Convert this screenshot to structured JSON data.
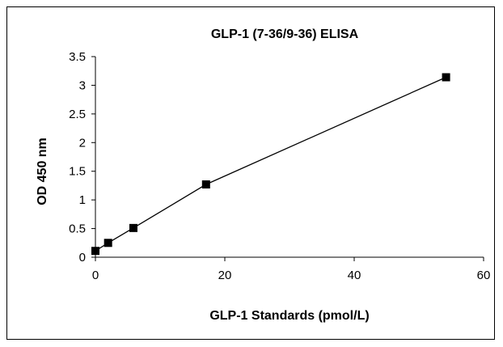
{
  "chart_data": {
    "type": "scatter",
    "title": "GLP-1 (7-36/9-36) ELISA",
    "xlabel": "GLP-1 Standards (pmol/L)",
    "ylabel": "OD 450 nm",
    "xlim": [
      0,
      60
    ],
    "ylim": [
      0,
      3.5
    ],
    "xticks": [
      "0",
      "20",
      "40",
      "60"
    ],
    "yticks": [
      "0",
      "0.5",
      "1",
      "1.5",
      "2",
      "2.5",
      "3",
      "3.5"
    ],
    "grid": false,
    "legend": "none",
    "marker": "square",
    "line": "connected",
    "color": "#000000",
    "series": [
      {
        "x": [
          0,
          1.96,
          5.87,
          17.1,
          54.2
        ],
        "y": [
          0.11,
          0.25,
          0.51,
          1.27,
          3.14
        ]
      }
    ]
  }
}
